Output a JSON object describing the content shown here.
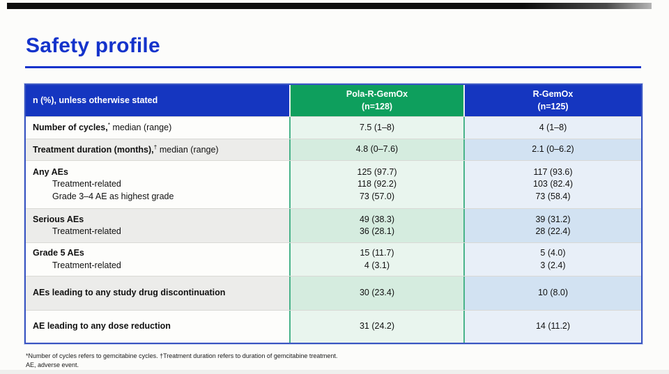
{
  "slide": {
    "title": "Safety profile"
  },
  "theme": {
    "title_blue": "#1433cb",
    "header_blue": "#1536c0",
    "header_green": "#0e9f5d",
    "cell_green_light": "#e9f5ee",
    "cell_green_mid": "#d5ecdf",
    "cell_blue_light": "#e8eff8",
    "cell_blue_mid": "#d2e2f2",
    "column_divider_teal": "#49b38a"
  },
  "table": {
    "header": {
      "label_col": "n (%), unless otherwise stated",
      "arms": [
        {
          "name": "Pola-R-GemOx",
          "n": "(n=128)"
        },
        {
          "name": "R-GemOx",
          "n": "(n=125)"
        }
      ]
    },
    "rows": [
      {
        "label_bold": "Number of cycles,",
        "label_sup": "*",
        "label_rest": " median (range)",
        "sub": [],
        "pola": [
          "7.5 (1–8)"
        ],
        "rgemox": [
          "4 (1–8)"
        ]
      },
      {
        "label_bold": "Treatment duration (months),",
        "label_sup": "†",
        "label_rest": " median (range)",
        "sub": [],
        "pola": [
          "4.8 (0–7.6)"
        ],
        "rgemox": [
          "2.1 (0–6.2)"
        ]
      },
      {
        "label_bold": "Any AEs",
        "label_sup": "",
        "label_rest": "",
        "sub": [
          "Treatment-related",
          "Grade 3–4 AE as highest grade"
        ],
        "pola": [
          "125 (97.7)",
          "118 (92.2)",
          "73 (57.0)"
        ],
        "rgemox": [
          "117 (93.6)",
          "103 (82.4)",
          "73 (58.4)"
        ]
      },
      {
        "label_bold": "Serious AEs",
        "label_sup": "",
        "label_rest": "",
        "sub": [
          "Treatment-related"
        ],
        "pola": [
          "49 (38.3)",
          "36 (28.1)"
        ],
        "rgemox": [
          "39 (31.2)",
          "28 (22.4)"
        ]
      },
      {
        "label_bold": "Grade 5 AEs",
        "label_sup": "",
        "label_rest": "",
        "sub": [
          "Treatment-related"
        ],
        "pola": [
          "15 (11.7)",
          "4 (3.1)"
        ],
        "rgemox": [
          "5 (4.0)",
          "3 (2.4)"
        ]
      },
      {
        "label_bold": "AEs leading to any study drug discontinuation",
        "label_sup": "",
        "label_rest": "",
        "sub": [],
        "pola": [
          "30 (23.4)"
        ],
        "rgemox": [
          "10 (8.0)"
        ]
      },
      {
        "label_bold": "AE leading to any dose reduction",
        "label_sup": "",
        "label_rest": "",
        "sub": [],
        "pola": [
          "31 (24.2)"
        ],
        "rgemox": [
          "14 (11.2)"
        ]
      }
    ]
  },
  "footnote": {
    "line1": "*Number of cycles refers to gemcitabine cycles. †Treatment duration refers to duration of gemcitabine treatment.",
    "line2": "AE, adverse event."
  }
}
